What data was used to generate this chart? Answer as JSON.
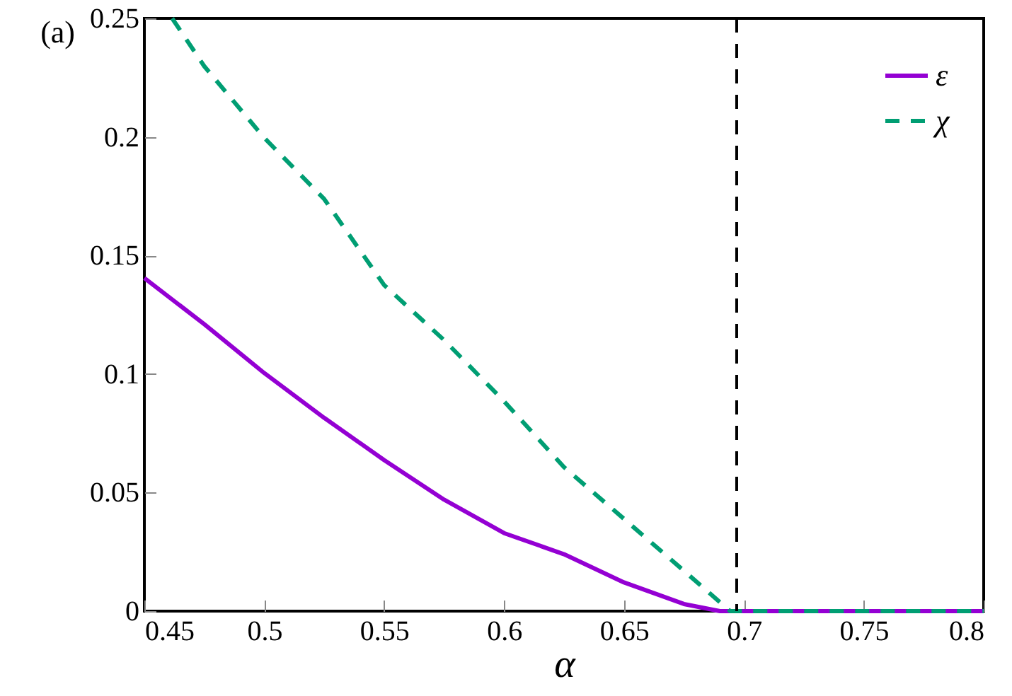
{
  "chart_data": {
    "type": "line",
    "title": "(a)",
    "xlabel": "α",
    "xlim": [
      0.45,
      0.8
    ],
    "xticks": [
      0.45,
      0.5,
      0.55,
      0.6,
      0.65,
      0.7,
      0.75,
      0.8
    ],
    "ylim": [
      0,
      0.25
    ],
    "yticks": [
      0,
      0.05,
      0.1,
      0.15,
      0.2,
      0.25
    ],
    "legend": "top right",
    "grid": false,
    "series": [
      {
        "name": "ε",
        "color": "#9400d3",
        "line_style": "solid",
        "x": [
          0.45,
          0.475,
          0.5,
          0.525,
          0.55,
          0.575,
          0.6,
          0.625,
          0.65,
          0.675,
          0.69,
          0.7,
          0.75,
          0.8
        ],
        "values": [
          0.1405,
          0.121,
          0.1004,
          0.0815,
          0.0637,
          0.047,
          0.0329,
          0.024,
          0.0121,
          0.003,
          0,
          0,
          0,
          0
        ]
      },
      {
        "name": "χ",
        "color": "#009e73",
        "line_style": "dashed",
        "x": [
          0.4616,
          0.475,
          0.5,
          0.525,
          0.55,
          0.575,
          0.6,
          0.625,
          0.65,
          0.675,
          0.6943,
          0.75,
          0.8
        ],
        "values": [
          0.25,
          0.2298,
          0.1996,
          0.1738,
          0.1375,
          0.1143,
          0.0885,
          0.0607,
          0.0389,
          0.017,
          0,
          0,
          0
        ]
      }
    ],
    "ref_lines": [
      {
        "axis": "x",
        "value": 0.697,
        "color": "#000000",
        "line_style": "dashed"
      }
    ]
  }
}
